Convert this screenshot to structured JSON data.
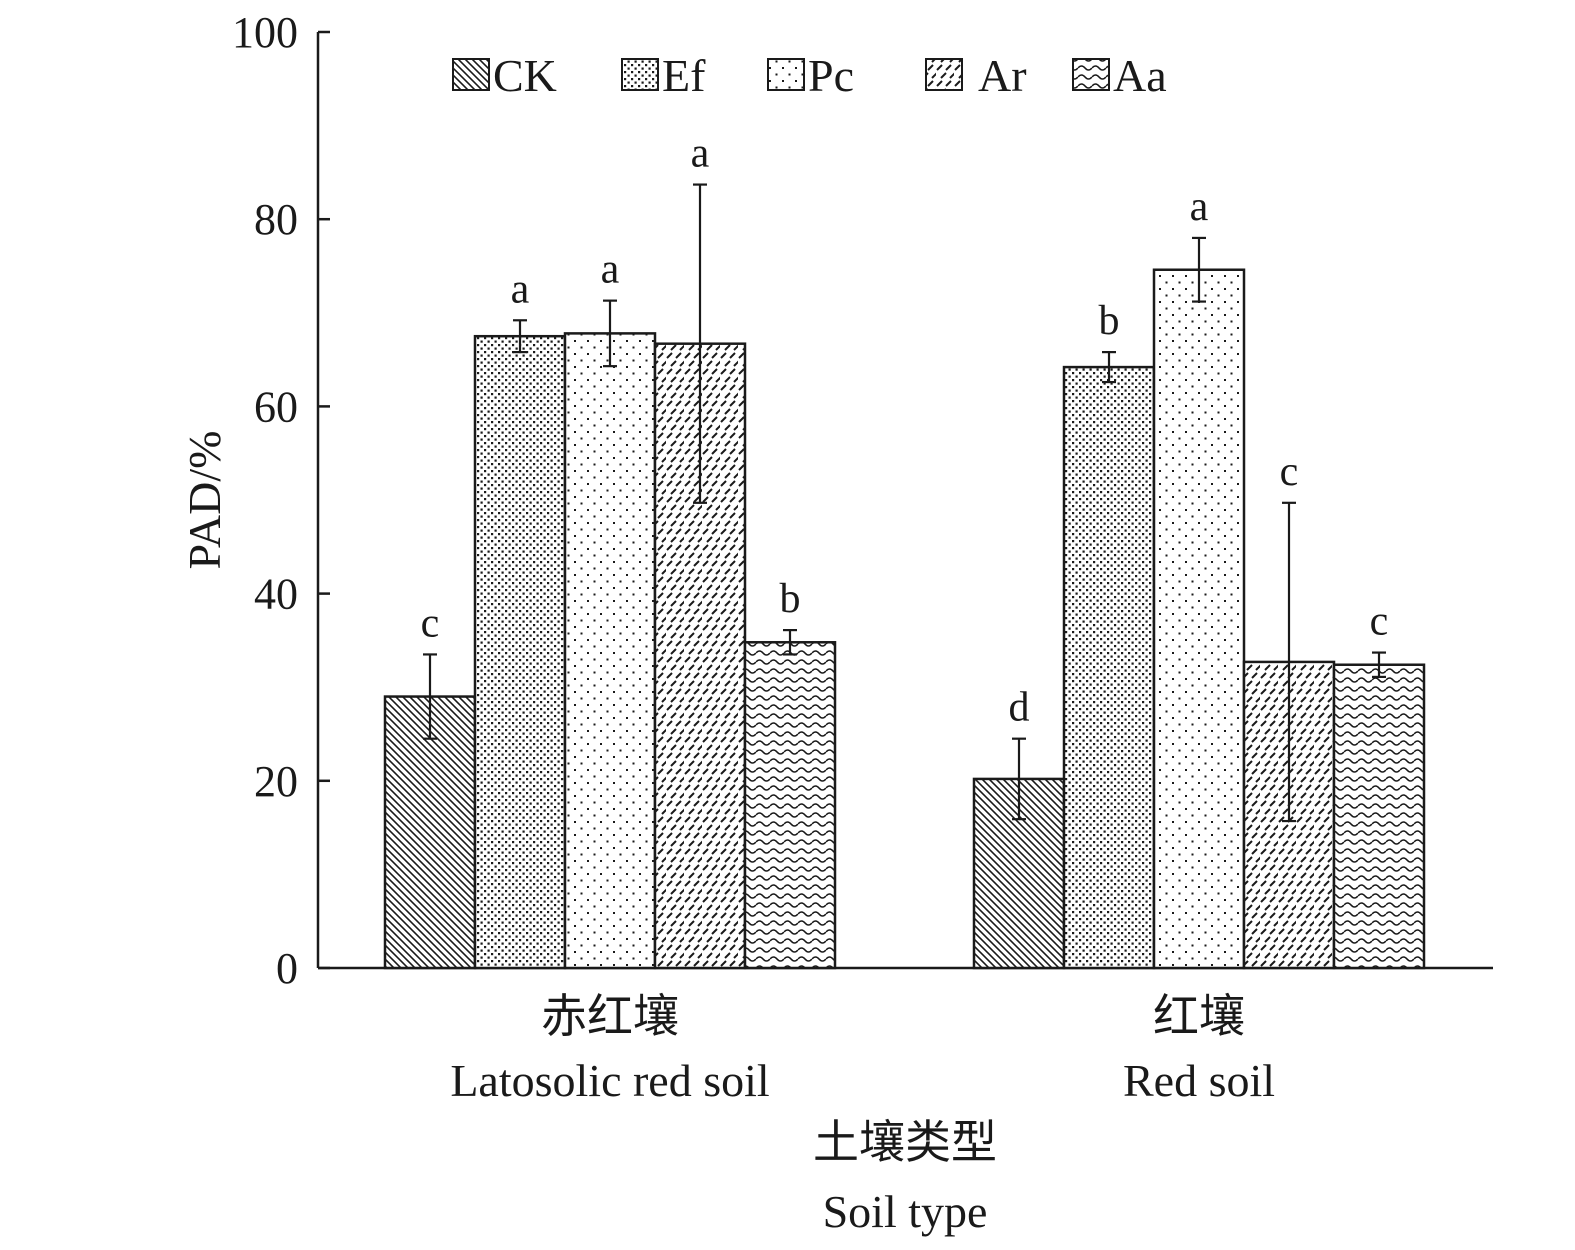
{
  "chart_data": {
    "type": "bar",
    "ylabel": "PAD/%",
    "xlabel_zh": "土壤类型",
    "xlabel_en": "Soil type",
    "ylim": [
      0,
      100
    ],
    "yticks": [
      0,
      20,
      40,
      60,
      80,
      100
    ],
    "legend_position": "top",
    "categories": [
      {
        "zh": "赤红壤",
        "en": "Latosolic red soil"
      },
      {
        "zh": "红壤",
        "en": "Red soil"
      }
    ],
    "series": [
      {
        "name": "CK",
        "pattern": "diagonal-dense",
        "values": [
          29.0,
          20.2
        ],
        "errors": [
          4.5,
          4.3
        ],
        "significance": [
          "c",
          "d"
        ]
      },
      {
        "name": "Ef",
        "pattern": "dots-dense",
        "values": [
          67.5,
          64.2
        ],
        "errors": [
          1.7,
          1.6
        ],
        "significance": [
          "a",
          "b"
        ]
      },
      {
        "name": "Pc",
        "pattern": "dots-sparse",
        "values": [
          67.8,
          74.6
        ],
        "errors": [
          3.5,
          3.4
        ],
        "significance": [
          "a",
          "a"
        ]
      },
      {
        "name": "Ar",
        "pattern": "dashed-diagonal",
        "values": [
          66.7,
          32.7
        ],
        "errors": [
          17.0,
          17.0
        ],
        "significance": [
          "a",
          "c"
        ]
      },
      {
        "name": "Aa",
        "pattern": "waves",
        "values": [
          34.8,
          32.4
        ],
        "errors": [
          1.3,
          1.3
        ],
        "significance": [
          "b",
          "c"
        ]
      }
    ],
    "colors": {
      "ink": "#1a1a1a",
      "background": "#ffffff"
    }
  }
}
